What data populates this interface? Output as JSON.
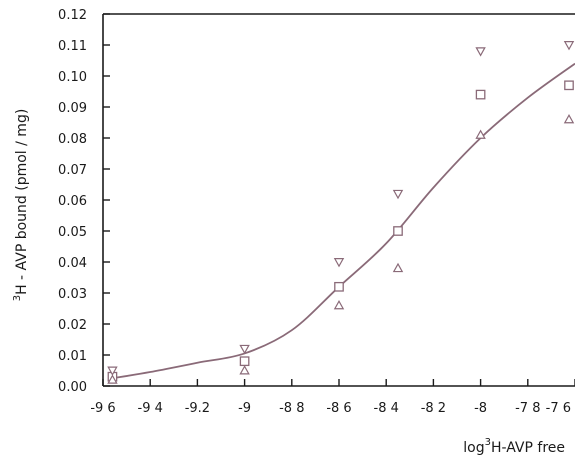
{
  "chart_data": {
    "type": "scatter",
    "title": "",
    "xlabel_main": "log",
    "xlabel_sup": "3",
    "xlabel_rest": "H-AVP  free",
    "ylabel_sup": "3",
    "ylabel_main": "H - AVP  bound (pmol / mg)",
    "xlim": [
      -9.6,
      -7.6
    ],
    "ylim": [
      0.0,
      0.12
    ],
    "x_ticks": [
      -9.6,
      -9.4,
      -9.2,
      -9.0,
      -8.8,
      -8.6,
      -8.4,
      -8.2,
      -8.0,
      -7.8,
      -7.6
    ],
    "x_tick_labels": [
      "-9 6",
      "-9 4",
      "-9.2",
      "-9",
      "-8 8",
      "-8 6",
      "-8 4",
      "-8 2",
      "-8",
      "-7 8",
      "-7 6"
    ],
    "y_ticks": [
      0.0,
      0.01,
      0.02,
      0.03,
      0.04,
      0.05,
      0.06,
      0.07,
      0.08,
      0.09,
      0.1,
      0.11,
      0.12
    ],
    "y_tick_labels": [
      "0.00",
      "0.01",
      "0.02",
      "0.03",
      "0.04",
      "0.05",
      "0.06",
      "0.07",
      "0.08",
      "0.09",
      "0.10",
      "0.11",
      "0.12"
    ],
    "grid": false,
    "series": [
      {
        "marker": "square",
        "x": [
          -9.56,
          -9.0,
          -8.6,
          -8.35,
          -8.0,
          -7.6
        ],
        "y": [
          0.003,
          0.008,
          0.032,
          0.05,
          0.094,
          0.097
        ]
      },
      {
        "marker": "triangle-down",
        "x": [
          -9.56,
          -9.0,
          -8.6,
          -8.35,
          -8.0,
          -7.6
        ],
        "y": [
          0.005,
          0.012,
          0.04,
          0.062,
          0.108,
          0.11
        ]
      },
      {
        "marker": "triangle-up",
        "x": [
          -9.56,
          -9.0,
          -8.6,
          -8.35,
          -8.0,
          -7.6
        ],
        "y": [
          0.002,
          0.005,
          0.026,
          0.038,
          0.081,
          0.086
        ]
      }
    ],
    "fit_curve": {
      "x": [
        -9.56,
        -9.4,
        -9.2,
        -9.0,
        -8.8,
        -8.6,
        -8.4,
        -8.2,
        -8.0,
        -7.8,
        -7.6
      ],
      "y": [
        0.0025,
        0.0045,
        0.0075,
        0.0105,
        0.018,
        0.032,
        0.046,
        0.064,
        0.08,
        0.093,
        0.104
      ]
    },
    "colors": {
      "axis": "#1a1a1a",
      "curve": "#8a6a78",
      "marker": "#8a6a78"
    }
  }
}
